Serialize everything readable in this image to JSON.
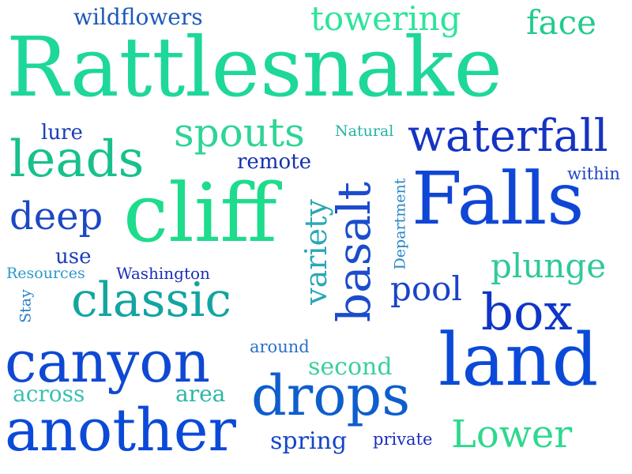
{
  "words": [
    {
      "text": "Rattlesnake",
      "color": "#1ed79a"
    },
    {
      "text": "Falls",
      "color": "#1046d6"
    },
    {
      "text": "cliff",
      "color": "#1ddc8c"
    },
    {
      "text": "land",
      "color": "#0b4ad8"
    },
    {
      "text": "canyon",
      "color": "#0f48d2"
    },
    {
      "text": "another",
      "color": "#0b4ad8"
    },
    {
      "text": "classic",
      "color": "#13a5a0"
    },
    {
      "text": "box",
      "color": "#1036c8"
    },
    {
      "text": "drops",
      "color": "#0e5ecd"
    },
    {
      "text": "basalt",
      "color": "#1b4ccc"
    },
    {
      "text": "leads",
      "color": "#18c08c"
    },
    {
      "text": "waterfall",
      "color": "#1634c2"
    },
    {
      "text": "spouts",
      "color": "#2ed595"
    },
    {
      "text": "deep",
      "color": "#1c48c4"
    },
    {
      "text": "Lower",
      "color": "#2fd88e"
    },
    {
      "text": "towering",
      "color": "#2ee49a"
    },
    {
      "text": "face",
      "color": "#22cc8a"
    },
    {
      "text": "plunge",
      "color": "#2ec99a"
    },
    {
      "text": "variety",
      "color": "#2aa7b6"
    },
    {
      "text": "pool",
      "color": "#1c42c9"
    },
    {
      "text": "wildflowers",
      "color": "#1d5ab8"
    },
    {
      "text": "second",
      "color": "#3bd09a"
    },
    {
      "text": "spring",
      "color": "#1546c8"
    },
    {
      "text": "lure",
      "color": "#1a3fb8"
    },
    {
      "text": "remote",
      "color": "#1630b0"
    },
    {
      "text": "use",
      "color": "#1a3fb8"
    },
    {
      "text": "across",
      "color": "#39c1b0"
    },
    {
      "text": "area",
      "color": "#2bb6a6"
    },
    {
      "text": "Washington",
      "color": "#1a2fb8"
    },
    {
      "text": "Resources",
      "color": "#2a99c8"
    },
    {
      "text": "around",
      "color": "#2c6fcc"
    },
    {
      "text": "private",
      "color": "#1b2fc0"
    },
    {
      "text": "within",
      "color": "#2144c8"
    },
    {
      "text": "Natural",
      "color": "#23b3a4"
    },
    {
      "text": "Department",
      "color": "#2a86c8"
    },
    {
      "text": "Stay",
      "color": "#2b7ec4"
    }
  ]
}
